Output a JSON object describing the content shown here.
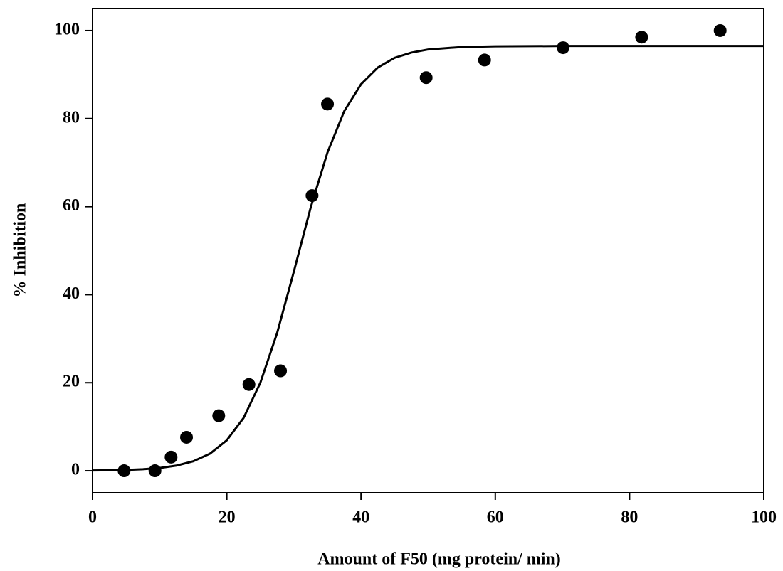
{
  "chart_data": {
    "type": "scatter",
    "x_label": "Amount of F50 (mg protein/ min)",
    "y_label": "% Inhibition",
    "xlim": [
      0,
      100
    ],
    "ylim": [
      -5,
      105
    ],
    "xticks": [
      0,
      20,
      40,
      60,
      80,
      100
    ],
    "yticks": [
      0,
      20,
      40,
      60,
      80,
      100
    ],
    "grid": false,
    "series": [
      {
        "mode": "markers",
        "color": "#000000",
        "x": [
          4.7,
          9.3,
          11.7,
          14.0,
          18.8,
          23.3,
          28.0,
          32.7,
          35.0,
          49.7,
          58.4,
          70.1,
          81.8,
          93.5
        ],
        "y": [
          0,
          0,
          3.1,
          7.6,
          12.5,
          19.6,
          22.7,
          62.5,
          83.3,
          89.3,
          93.3,
          96.1,
          98.5,
          100
        ]
      },
      {
        "mode": "line",
        "color": "#000000",
        "x": [
          0,
          2.5,
          5,
          7.5,
          10,
          12.5,
          15,
          17.5,
          20,
          22.5,
          25,
          27.5,
          30,
          32.5,
          35,
          37.5,
          40,
          42.5,
          45,
          47.5,
          50,
          55,
          60,
          70,
          80,
          90,
          100
        ],
        "y": [
          0.06,
          0.1,
          0.19,
          0.35,
          0.64,
          1.18,
          2.15,
          3.89,
          6.92,
          12.0,
          20.0,
          31.3,
          45.3,
          59.8,
          72.3,
          81.7,
          87.8,
          91.6,
          93.8,
          95.0,
          95.7,
          96.26,
          96.42,
          96.49,
          96.5,
          96.5,
          96.5
        ]
      }
    ]
  }
}
